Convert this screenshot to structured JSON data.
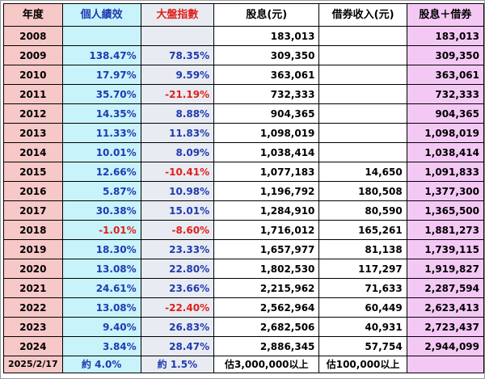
{
  "header": {
    "year": "年度",
    "personal": "個人績效",
    "index": "大盤指數",
    "dividend": "股息(元)",
    "lending": "借券收入(元)",
    "total": "股息＋借券"
  },
  "rows": [
    {
      "year": "2008",
      "personal": "",
      "index": "",
      "dividend": "183,013",
      "lending": "",
      "total": "183,013",
      "personal_neg": false,
      "index_neg": false
    },
    {
      "year": "2009",
      "personal": "138.47%",
      "index": "78.35%",
      "dividend": "309,350",
      "lending": "",
      "total": "309,350",
      "personal_neg": false,
      "index_neg": false
    },
    {
      "year": "2010",
      "personal": "17.97%",
      "index": "9.59%",
      "dividend": "363,061",
      "lending": "",
      "total": "363,061",
      "personal_neg": false,
      "index_neg": false
    },
    {
      "year": "2011",
      "personal": "35.70%",
      "index": "-21.19%",
      "dividend": "732,333",
      "lending": "",
      "total": "732,333",
      "personal_neg": false,
      "index_neg": true
    },
    {
      "year": "2012",
      "personal": "14.35%",
      "index": "8.88%",
      "dividend": "904,365",
      "lending": "",
      "total": "904,365",
      "personal_neg": false,
      "index_neg": false
    },
    {
      "year": "2013",
      "personal": "11.33%",
      "index": "11.83%",
      "dividend": "1,098,019",
      "lending": "",
      "total": "1,098,019",
      "personal_neg": false,
      "index_neg": false
    },
    {
      "year": "2014",
      "personal": "10.01%",
      "index": "8.09%",
      "dividend": "1,038,414",
      "lending": "",
      "total": "1,038,414",
      "personal_neg": false,
      "index_neg": false
    },
    {
      "year": "2015",
      "personal": "12.66%",
      "index": "-10.41%",
      "dividend": "1,077,183",
      "lending": "14,650",
      "total": "1,091,833",
      "personal_neg": false,
      "index_neg": true
    },
    {
      "year": "2016",
      "personal": "5.87%",
      "index": "10.98%",
      "dividend": "1,196,792",
      "lending": "180,508",
      "total": "1,377,300",
      "personal_neg": false,
      "index_neg": false
    },
    {
      "year": "2017",
      "personal": "30.38%",
      "index": "15.01%",
      "dividend": "1,284,910",
      "lending": "80,590",
      "total": "1,365,500",
      "personal_neg": false,
      "index_neg": false
    },
    {
      "year": "2018",
      "personal": "-1.01%",
      "index": "-8.60%",
      "dividend": "1,716,012",
      "lending": "165,261",
      "total": "1,881,273",
      "personal_neg": true,
      "index_neg": true
    },
    {
      "year": "2019",
      "personal": "18.30%",
      "index": "23.33%",
      "dividend": "1,657,977",
      "lending": "81,138",
      "total": "1,739,115",
      "personal_neg": false,
      "index_neg": false
    },
    {
      "year": "2020",
      "personal": "13.08%",
      "index": "22.80%",
      "dividend": "1,802,530",
      "lending": "117,297",
      "total": "1,919,827",
      "personal_neg": false,
      "index_neg": false
    },
    {
      "year": "2021",
      "personal": "24.61%",
      "index": "23.66%",
      "dividend": "2,215,962",
      "lending": "71,633",
      "total": "2,287,594",
      "personal_neg": false,
      "index_neg": false
    },
    {
      "year": "2022",
      "personal": "13.08%",
      "index": "-22.40%",
      "dividend": "2,562,964",
      "lending": "60,449",
      "total": "2,623,413",
      "personal_neg": false,
      "index_neg": true
    },
    {
      "year": "2023",
      "personal": "9.40%",
      "index": "26.83%",
      "dividend": "2,682,506",
      "lending": "40,931",
      "total": "2,723,437",
      "personal_neg": false,
      "index_neg": false
    },
    {
      "year": "2024",
      "personal": "3.84%",
      "index": "28.47%",
      "dividend": "2,886,345",
      "lending": "57,754",
      "total": "2,944,099",
      "personal_neg": false,
      "index_neg": false
    }
  ],
  "last_row": {
    "year": "2025/2/17",
    "personal": "約 4.0%",
    "index": "約 1.5%",
    "dividend": "估3,000,000以上",
    "lending": "估100,000以上",
    "total": ""
  },
  "colors": {
    "year_bg": "#f7c8c8",
    "personal_bg": "#c9f3fb",
    "index_bg": "#e8ebf1",
    "total_bg": "#f4c8f4",
    "positive_text": "#1f3bb0",
    "negative_text": "#e0201c"
  }
}
